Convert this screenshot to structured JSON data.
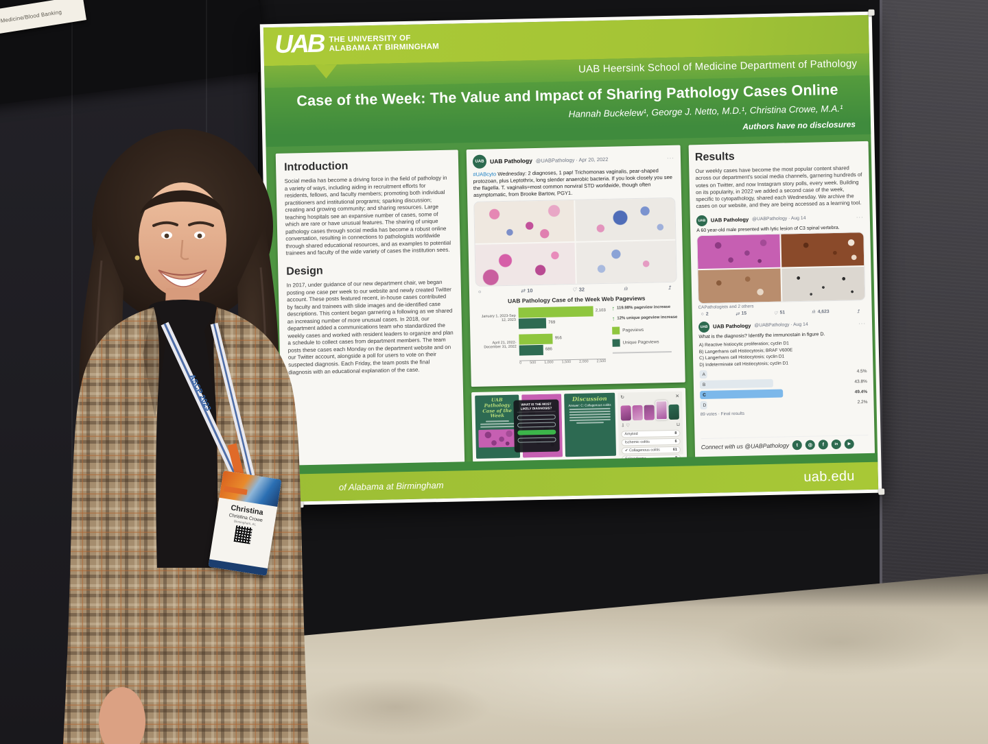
{
  "scene": {
    "sign": "Medicine/Blood Banking",
    "lanyard": "ASCP 2023",
    "badge": {
      "first_name": "Christina",
      "full_name": "Christina Crowe",
      "location": "Birmingham, AL"
    }
  },
  "icons": {
    "reply": "○",
    "retweet": "⇄",
    "like": "♡",
    "analytics": "ılı",
    "share": "↥",
    "close": "✕",
    "refresh": "↻",
    "download": "⇩",
    "heart": "♡",
    "trash": "⊔",
    "up_arrow": "↑",
    "dots": "···",
    "check": "✔"
  },
  "poster": {
    "header": {
      "logo_acronym": "UAB",
      "uni_line1": "THE UNIVERSITY OF",
      "uni_line2": "ALABAMA AT BIRMINGHAM",
      "department": "UAB Heersink School of Medicine Department of Pathology",
      "title": "Case of the Week: The Value and Impact of Sharing Pathology Cases Online",
      "authors": "Hannah Buckelew¹, George J. Netto, M.D.¹, Christina Crowe, M.A.¹",
      "disclosures": "Authors have no disclosures"
    },
    "sections": {
      "intro": {
        "heading": "Introduction",
        "body": "Social media has become a driving force in the field of pathology in a variety of ways, including aiding in recruitment efforts for residents, fellows, and faculty members; promoting both individual practitioners and institutional programs; sparking discussion; creating and growing community; and sharing resources. Large teaching hospitals see an expansive number of cases, some of which are rare or have unusual features. The sharing of unique pathology cases through social media has become a robust online conversation, resulting in connections to pathologists worldwide through shared educational resources, and as examples to potential trainees and faculty of the wide variety of cases the institution sees."
      },
      "design": {
        "heading": "Design",
        "body": "In 2017, under guidance of our new department chair, we began posting one case per week to our website and newly created Twitter account. These posts featured recent, in-house cases contributed by faculty and trainees with slide images and de-identified case descriptions. This content began garnering a following as we shared an increasing number of more unusual cases. In 2018, our department added a communications team who standardized the weekly cases and worked with resident leaders to organize and plan a schedule to collect cases from department members. The team posts these cases each Monday on the department website and on our Twitter account, alongside a poll for users to vote on their suspected diagnosis. Each Friday, the team posts the final diagnosis with an educational explanation of the case."
      },
      "results": {
        "heading": "Results",
        "body": "Our weekly cases have become the most popular content shared across our department's social media channels, garnering hundreds of votes on Twitter, and now Instagram story polls, every week. Building on its popularity, in 2022 we added a second case of the week, specific to cytopathology, shared each Wednesday. We archive the cases on our website, and they are being accessed as a learning tool."
      }
    },
    "tweet1": {
      "name": "UAB Pathology",
      "handle_date": "@UABPathology · Apr 20, 2022",
      "hashtag": "#UABcyto",
      "text": " Wednesday: 2 diagnoses, 1 pap! Trichomonas vaginalis, pear-shaped protozoan, plus Leptothrix, long slender anaerobic bacteria. If you look closely you see the flagella. T. vaginalis=most common nonviral STD worldwide, though often asymptomatic, from Brooke Bartow, PGY1.",
      "retweets": "10",
      "likes": "32"
    },
    "chart_data": {
      "type": "bar",
      "orientation": "horizontal",
      "title": "UAB Pathology Case of the Week Web Pageviews",
      "categories": [
        "January 1, 2023-Sep 12, 2023",
        "April 21, 2022-December 31, 2022"
      ],
      "series": [
        {
          "name": "Pageviews",
          "values": [
            2103,
            956
          ]
        },
        {
          "name": "Unique Pageviews",
          "values": [
            769,
            686
          ]
        }
      ],
      "value_labels": {
        "pv1": "2,103",
        "uq1": "769",
        "pv2": "956",
        "uq2": "686"
      },
      "bar_pct": {
        "pv1": 84,
        "uq1": 31,
        "pv2": 38,
        "uq2": 27
      },
      "xlim": [
        0,
        2500
      ],
      "ticks": [
        "0",
        "500",
        "1,000",
        "1,500",
        "2,000",
        "2,500"
      ],
      "annotations": [
        "119.98% pageview increase",
        "12% unique pageview increase"
      ],
      "legend_position": "right",
      "colors": {
        "pageviews": "#8fc63e",
        "unique": "#2e6b52"
      }
    },
    "bottom": {
      "card_title": "UAB Pathology Case of the Week",
      "poll_title": "WHAT IS THE MOST LIKELY DIAGNOSIS?",
      "discussion": {
        "heading": "Discussion",
        "answer": "Answer: C: Collagenous colitis"
      },
      "ig_options": [
        {
          "label": "Amyloid",
          "count": "8"
        },
        {
          "label": "Ischemic colitis",
          "count": "6"
        },
        {
          "label": "Collagenous colitis",
          "count": "61"
        },
        {
          "label": "Scleroderma",
          "count": "8"
        }
      ]
    },
    "tweet2": {
      "name": "UAB Pathology",
      "handle_date": "@UABPathology · Aug 14",
      "text": "A 60 year-old male presented with lytic lesion of C3 spinal vertebra.",
      "caption": "CAPathologists and 2 others",
      "replies": "2",
      "retweets": "15",
      "likes": "51",
      "views": "4,623"
    },
    "tweet3": {
      "name": "UAB Pathology",
      "handle_date": "@UABPathology · Aug 14",
      "question": "What is the diagnosis? Identify the immunostain in figure D.",
      "options": [
        "A) Reactive histiocytic proliferation; cyclin D1",
        "B) Langerhans cell Histiocytosis; BRAF V600E",
        "C) Langerhans cell Histiocytosis; cyclin D1",
        "D) Indeterminate cell Histiocytosis; cyclin D1"
      ],
      "poll": [
        {
          "letter": "A",
          "pct": "4.5%",
          "w": 4.5
        },
        {
          "letter": "B",
          "pct": "43.8%",
          "w": 43.8
        },
        {
          "letter": "C",
          "pct": "49.4%",
          "w": 49.4
        },
        {
          "letter": "D",
          "pct": "2.2%",
          "w": 2.2
        }
      ],
      "footer": "89 votes · Final results"
    },
    "footer": {
      "connect": "Connect with us @UABPathology",
      "strip": "of Alabama at Birmingham",
      "site": "uab.edu",
      "social": [
        {
          "name": "twitter",
          "glyph": "t"
        },
        {
          "name": "instagram",
          "glyph": "◎"
        },
        {
          "name": "facebook",
          "glyph": "f"
        },
        {
          "name": "linkedin",
          "glyph": "in"
        },
        {
          "name": "youtube",
          "glyph": "▶"
        }
      ]
    }
  }
}
